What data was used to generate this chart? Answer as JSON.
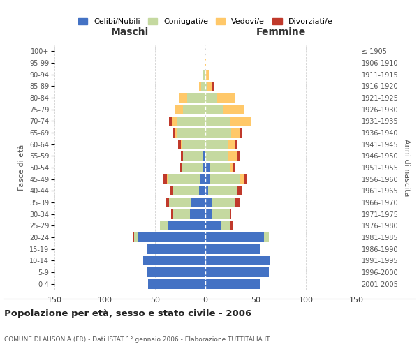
{
  "age_groups": [
    "0-4",
    "5-9",
    "10-14",
    "15-19",
    "20-24",
    "25-29",
    "30-34",
    "35-39",
    "40-44",
    "45-49",
    "50-54",
    "55-59",
    "60-64",
    "65-69",
    "70-74",
    "75-79",
    "80-84",
    "85-89",
    "90-94",
    "95-99",
    "100+"
  ],
  "birth_years": [
    "2001-2005",
    "1996-2000",
    "1991-1995",
    "1986-1990",
    "1981-1985",
    "1976-1980",
    "1971-1975",
    "1966-1970",
    "1961-1965",
    "1956-1960",
    "1951-1955",
    "1946-1950",
    "1941-1945",
    "1936-1940",
    "1931-1935",
    "1926-1930",
    "1921-1925",
    "1916-1920",
    "1911-1915",
    "1906-1910",
    "≤ 1905"
  ],
  "male": {
    "celibi": [
      57,
      58,
      62,
      58,
      67,
      37,
      15,
      14,
      6,
      5,
      3,
      2,
      0,
      0,
      0,
      0,
      0,
      0,
      1,
      0,
      0
    ],
    "coniugati": [
      0,
      0,
      0,
      0,
      4,
      8,
      17,
      22,
      26,
      32,
      20,
      20,
      23,
      28,
      28,
      22,
      18,
      4,
      2,
      0,
      0
    ],
    "vedovi": [
      0,
      0,
      0,
      0,
      0,
      0,
      0,
      0,
      0,
      1,
      0,
      0,
      1,
      2,
      5,
      8,
      8,
      2,
      0,
      0,
      0
    ],
    "divorziati": [
      0,
      0,
      0,
      0,
      1,
      0,
      2,
      3,
      3,
      4,
      2,
      2,
      3,
      2,
      3,
      0,
      0,
      0,
      0,
      0,
      0
    ]
  },
  "female": {
    "nubili": [
      55,
      63,
      64,
      55,
      58,
      16,
      7,
      6,
      3,
      5,
      5,
      0,
      0,
      0,
      0,
      0,
      0,
      0,
      0,
      0,
      0
    ],
    "coniugate": [
      0,
      0,
      0,
      0,
      5,
      9,
      17,
      24,
      28,
      30,
      20,
      22,
      22,
      26,
      24,
      18,
      12,
      2,
      1,
      0,
      0
    ],
    "vedove": [
      0,
      0,
      0,
      0,
      0,
      0,
      0,
      0,
      1,
      3,
      2,
      10,
      8,
      8,
      22,
      20,
      18,
      5,
      3,
      1,
      0
    ],
    "divorziate": [
      0,
      0,
      0,
      0,
      0,
      2,
      2,
      5,
      5,
      4,
      2,
      2,
      2,
      3,
      0,
      0,
      0,
      1,
      0,
      0,
      0
    ]
  },
  "colors": {
    "celibi": "#4472c4",
    "coniugati": "#c5d9a0",
    "vedovi": "#ffc869",
    "divorziati": "#c0392b"
  },
  "xlim": 150,
  "title": "Popolazione per età, sesso e stato civile - 2006",
  "subtitle": "COMUNE DI AUSONIA (FR) - Dati ISTAT 1° gennaio 2006 - Elaborazione TUTTITALIA.IT",
  "ylabel_left": "Fasce di età",
  "ylabel_right": "Anni di nascita",
  "xlabel_left": "Maschi",
  "xlabel_right": "Femmine",
  "legend_labels": [
    "Celibi/Nubili",
    "Coniugati/e",
    "Vedovi/e",
    "Divorziati/e"
  ],
  "background_color": "#ffffff",
  "grid_color": "#cccccc"
}
